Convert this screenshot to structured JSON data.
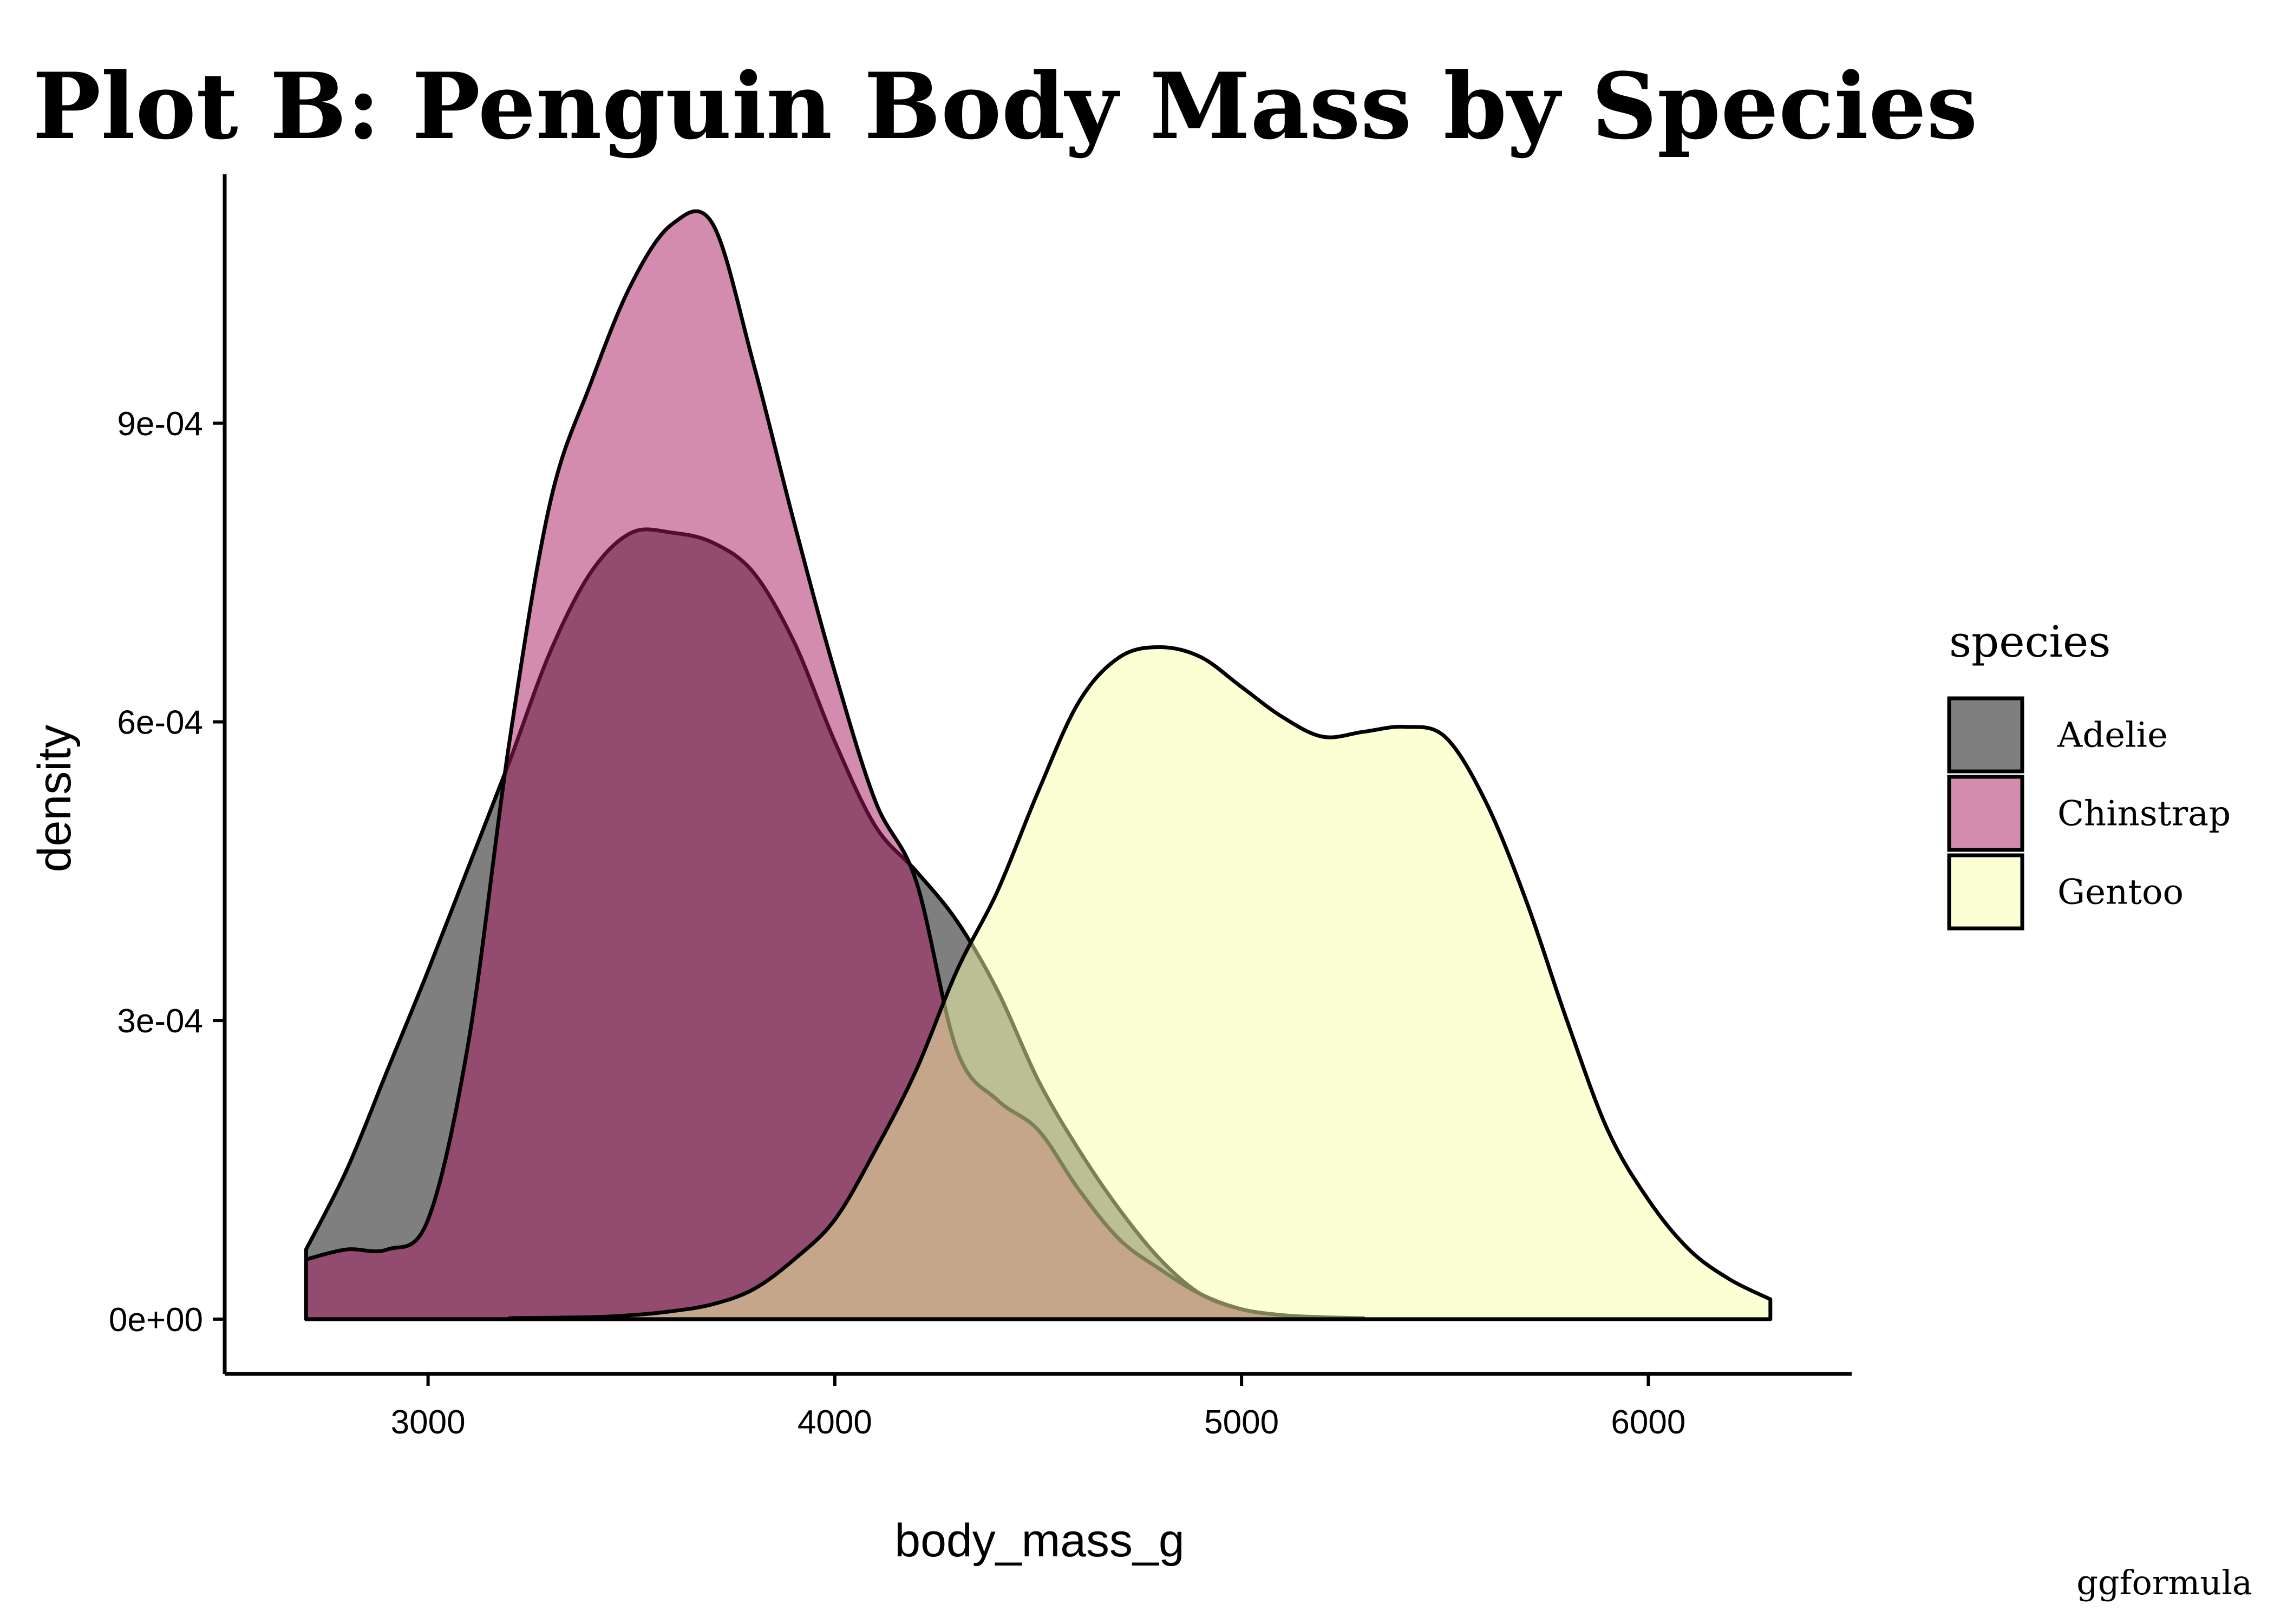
{
  "chart_data": {
    "type": "area",
    "title": "Plot B: Penguin Body Mass by Species",
    "xlabel": "body_mass_g",
    "ylabel": "density",
    "xlim": [
      2500,
      6500
    ],
    "ylim": [
      -5.5e-05,
      0.00115
    ],
    "x_ticks": [
      3000,
      4000,
      5000,
      6000
    ],
    "x_tick_labels": [
      "3000",
      "4000",
      "5000",
      "6000"
    ],
    "y_ticks": [
      0,
      0.0003,
      0.0006,
      0.0009
    ],
    "y_tick_labels": [
      "0e+00",
      "3e-04",
      "6e-04",
      "9e-04"
    ],
    "grid": false,
    "legend": {
      "title": "species",
      "position": "right"
    },
    "caption": "ggformula",
    "series": [
      {
        "name": "Adelie",
        "color": "#000000",
        "opacity": 0.5,
        "x": [
          2700,
          2800,
          2900,
          3000,
          3100,
          3200,
          3300,
          3400,
          3500,
          3600,
          3700,
          3800,
          3900,
          4000,
          4100,
          4200,
          4300,
          4400,
          4500,
          4600,
          4700,
          4800,
          4900,
          5000,
          5100,
          5200,
          5300
        ],
        "y": [
          7e-05,
          0.00015,
          0.00025,
          0.00035,
          0.000455,
          0.00056,
          0.00067,
          0.00075,
          0.00079,
          0.00079,
          0.00078,
          0.00075,
          0.00068,
          0.00058,
          0.000495,
          0.00045,
          0.0004,
          0.00033,
          0.00024,
          0.00017,
          0.00011,
          6e-05,
          2.5e-05,
          1e-05,
          4e-06,
          2e-06,
          1e-06
        ]
      },
      {
        "name": "Chinstrap",
        "color": "#a8195f",
        "opacity": 0.5,
        "x": [
          2700,
          2800,
          2900,
          3000,
          3100,
          3200,
          3300,
          3400,
          3500,
          3600,
          3700,
          3800,
          3900,
          4000,
          4100,
          4200,
          4300,
          4400,
          4500,
          4600,
          4700,
          4800,
          4900,
          5000,
          5100,
          5200
        ],
        "y": [
          6e-05,
          7e-05,
          7e-05,
          0.0001,
          0.00028,
          0.00058,
          0.00082,
          0.00094,
          0.00104,
          0.0011,
          0.0011,
          0.00096,
          0.0008,
          0.00065,
          0.00052,
          0.00044,
          0.00027,
          0.00022,
          0.00019,
          0.00013,
          8e-05,
          5e-05,
          2.5e-05,
          1e-05,
          4e-06,
          1e-06
        ]
      },
      {
        "name": "Gentoo",
        "color": "#f8ffa8",
        "opacity": 0.5,
        "x": [
          3200,
          3400,
          3500,
          3600,
          3700,
          3800,
          3900,
          4000,
          4100,
          4200,
          4300,
          4400,
          4500,
          4600,
          4700,
          4800,
          4900,
          5000,
          5100,
          5200,
          5300,
          5400,
          5500,
          5600,
          5700,
          5800,
          5900,
          6000,
          6100,
          6200,
          6300
        ],
        "y": [
          1e-06,
          2e-06,
          4e-06,
          8e-06,
          1.5e-05,
          3e-05,
          6e-05,
          0.0001,
          0.00017,
          0.00025,
          0.00035,
          0.00043,
          0.00053,
          0.00062,
          0.000665,
          0.000675,
          0.000665,
          0.000635,
          0.000605,
          0.000585,
          0.00059,
          0.000595,
          0.000585,
          0.00052,
          0.00042,
          0.0003,
          0.00019,
          0.00012,
          7e-05,
          4e-05,
          2e-05
        ]
      }
    ]
  }
}
